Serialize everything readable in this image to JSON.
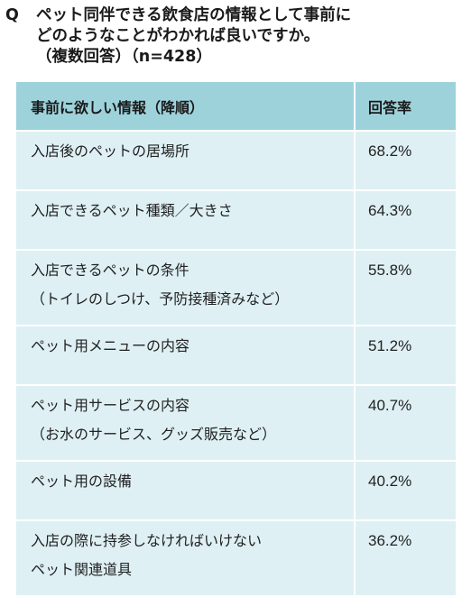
{
  "question": {
    "mark": "Q",
    "line1": "ペット同伴できる飲食店の情報として事前に",
    "line2": "どのようなことがわかれば良いですか。",
    "line3": "（複数回答）（n=428）"
  },
  "table": {
    "headers": [
      "事前に欲しい情報（降順）",
      "回答率"
    ],
    "rows": [
      {
        "item": [
          "入店後のペットの居場所"
        ],
        "rate": "68.2%"
      },
      {
        "item": [
          "入店できるペット種類／大きさ"
        ],
        "rate": "64.3%"
      },
      {
        "item": [
          "入店できるペットの条件",
          "（トイレのしつけ、予防接種済みなど）"
        ],
        "rate": "55.8%"
      },
      {
        "item": [
          "ペット用メニューの内容"
        ],
        "rate": "51.2%"
      },
      {
        "item": [
          "ペット用サービスの内容",
          "（お水のサービス、グッズ販売など）"
        ],
        "rate": "40.7%"
      },
      {
        "item": [
          "ペット用の設備"
        ],
        "rate": "40.2%"
      },
      {
        "item": [
          "入店の際に持参しなければいけない",
          "ペット関連道具"
        ],
        "rate": "36.2%"
      }
    ]
  },
  "colors": {
    "header_bg": "#9dd2db",
    "row_bg": "#def0f4"
  }
}
